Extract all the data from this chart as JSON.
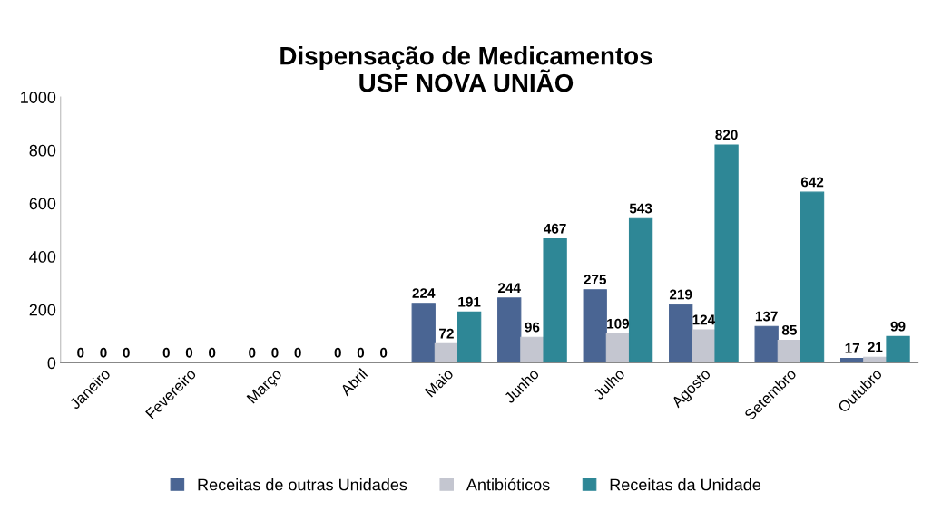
{
  "chart_data": {
    "type": "bar",
    "title": "Dispensação de Medicamentos\nUSF NOVA UNIÃO",
    "categories": [
      "Janeiro",
      "Fevereiro",
      "Março",
      "Abril",
      "Maio",
      "Junho",
      "Julho",
      "Agosto",
      "Setembro",
      "Outubro"
    ],
    "series": [
      {
        "name": "Receitas de outras Unidades",
        "color": "#4a6593",
        "values": [
          0,
          0,
          0,
          0,
          224,
          244,
          275,
          219,
          137,
          17
        ]
      },
      {
        "name": "Antibióticos",
        "color": "#c4c6d0",
        "values": [
          0,
          0,
          0,
          0,
          72,
          96,
          109,
          124,
          85,
          21
        ]
      },
      {
        "name": "Receitas da Unidade",
        "color": "#2e8796",
        "values": [
          0,
          0,
          0,
          0,
          191,
          467,
          543,
          820,
          642,
          99
        ]
      }
    ],
    "ylim": [
      0,
      1000
    ],
    "yticks": [
      0,
      200,
      400,
      600,
      800,
      1000
    ],
    "grid": false,
    "legend": "bottom",
    "data_labels": true
  }
}
